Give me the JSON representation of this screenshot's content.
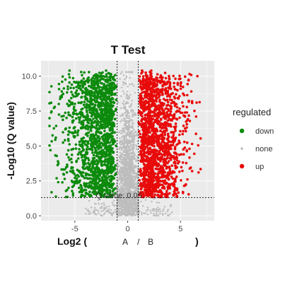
{
  "chart_data": {
    "type": "scatter",
    "title": "T Test",
    "xlabel_parts": [
      "Log2 (",
      "A",
      "/",
      "B",
      ")"
    ],
    "ylabel": "-Log10 (Q value)",
    "xlim": [
      -8.2,
      8.2
    ],
    "ylim": [
      -0.35,
      11.1
    ],
    "x_ticks": [
      -5,
      0,
      5
    ],
    "x_tick_labels": [
      "-5",
      "0",
      "5"
    ],
    "y_ticks": [
      0.0,
      2.5,
      5.0,
      7.5,
      10.0
    ],
    "y_tick_labels": [
      "0.0",
      "2.5",
      "5.0",
      "7.5",
      "10.0"
    ],
    "grid": true,
    "background": "#ebebeb",
    "thresholds": {
      "log2fc": [
        -1,
        1
      ],
      "neg_log10_q": 1.3
    },
    "annotation": "Q value: 0.05",
    "legend": {
      "title": "regulated",
      "position": "right",
      "entries": [
        "down",
        "none",
        "up"
      ]
    },
    "series": [
      {
        "name": "down",
        "color": "#0c8a0c",
        "x": [
          -7.3,
          -6.9,
          -6.6,
          -6.2,
          -5.9,
          -5.5,
          -5.2,
          -4.8,
          -4.4,
          -4.0,
          -3.7,
          -3.3,
          -2.9,
          -2.5,
          -2.1,
          -1.7,
          -1.3,
          -6.8,
          -5.6,
          -4.6,
          -3.5,
          -2.4,
          -1.6
        ],
        "y": [
          4.7,
          7.8,
          3.9,
          9.6,
          6.2,
          10.4,
          3.1,
          8.7,
          10.3,
          5.1,
          9.9,
          2.6,
          8.2,
          10.2,
          4.4,
          6.8,
          3.3,
          5.6,
          7.4,
          2.0,
          6.1,
          1.9,
          8.9
        ],
        "density": "approximately 8000 points"
      },
      {
        "name": "none",
        "color": "#bdbdbd",
        "x": [
          -0.9,
          -0.5,
          -0.2,
          0.1,
          0.4,
          0.8,
          -1.8,
          -0.6,
          0.2,
          1.9,
          -3.2,
          2.7,
          -0.3,
          0.6
        ],
        "y": [
          8.1,
          3.2,
          6.6,
          1.2,
          4.8,
          0.4,
          0.3,
          2.0,
          9.9,
          0.6,
          0.2,
          0.3,
          0.5,
          7.2
        ],
        "density": "approximately 10000 points"
      },
      {
        "name": "up",
        "color": "#e80a0a",
        "x": [
          1.3,
          1.7,
          2.1,
          2.5,
          2.9,
          3.3,
          3.7,
          4.1,
          4.5,
          4.9,
          5.3,
          5.6,
          6.1,
          6.6,
          1.5,
          2.6,
          3.6,
          4.4
        ],
        "y": [
          3.0,
          8.7,
          10.3,
          5.2,
          9.6,
          2.2,
          7.9,
          6.4,
          3.6,
          5.8,
          4.4,
          7.4,
          3.2,
          10.0,
          6.1,
          1.8,
          9.1,
          2.1
        ],
        "density": "approximately 9000 points"
      }
    ]
  }
}
